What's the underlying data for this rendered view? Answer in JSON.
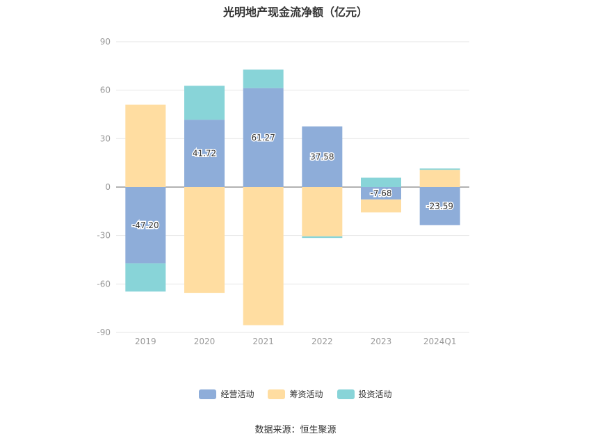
{
  "title": "光明地产现金流净额（亿元）",
  "source": "数据来源：恒生聚源",
  "colors": {
    "operating": "#8eadd9",
    "financing": "#ffdda1",
    "investing": "#88d4d8",
    "grid": "#e6e6e6",
    "axis": "#666666",
    "tick_text": "#999999"
  },
  "chart_data": {
    "type": "bar",
    "stacked": true,
    "categories": [
      "2019",
      "2020",
      "2021",
      "2022",
      "2023",
      "2024Q1"
    ],
    "series": [
      {
        "name": "经营活动",
        "color_key": "operating",
        "values": [
          -47.2,
          41.72,
          61.27,
          37.58,
          -7.68,
          -23.59
        ]
      },
      {
        "name": "筹资活动",
        "color_key": "financing",
        "values": [
          51.0,
          -65.5,
          -85.5,
          -30.5,
          -8.0,
          10.7
        ]
      },
      {
        "name": "投资活动",
        "color_key": "investing",
        "values": [
          -17.5,
          21.0,
          11.5,
          -1.0,
          5.8,
          0.8
        ]
      }
    ],
    "data_labels": [
      "-47.20",
      "41.72",
      "61.27",
      "37.58",
      "-7.68",
      "-23.59"
    ],
    "ylim": [
      -90,
      90
    ],
    "yticks": [
      90,
      60,
      30,
      0,
      -30,
      -60,
      -90
    ],
    "grid": true,
    "legend_position": "bottom"
  }
}
